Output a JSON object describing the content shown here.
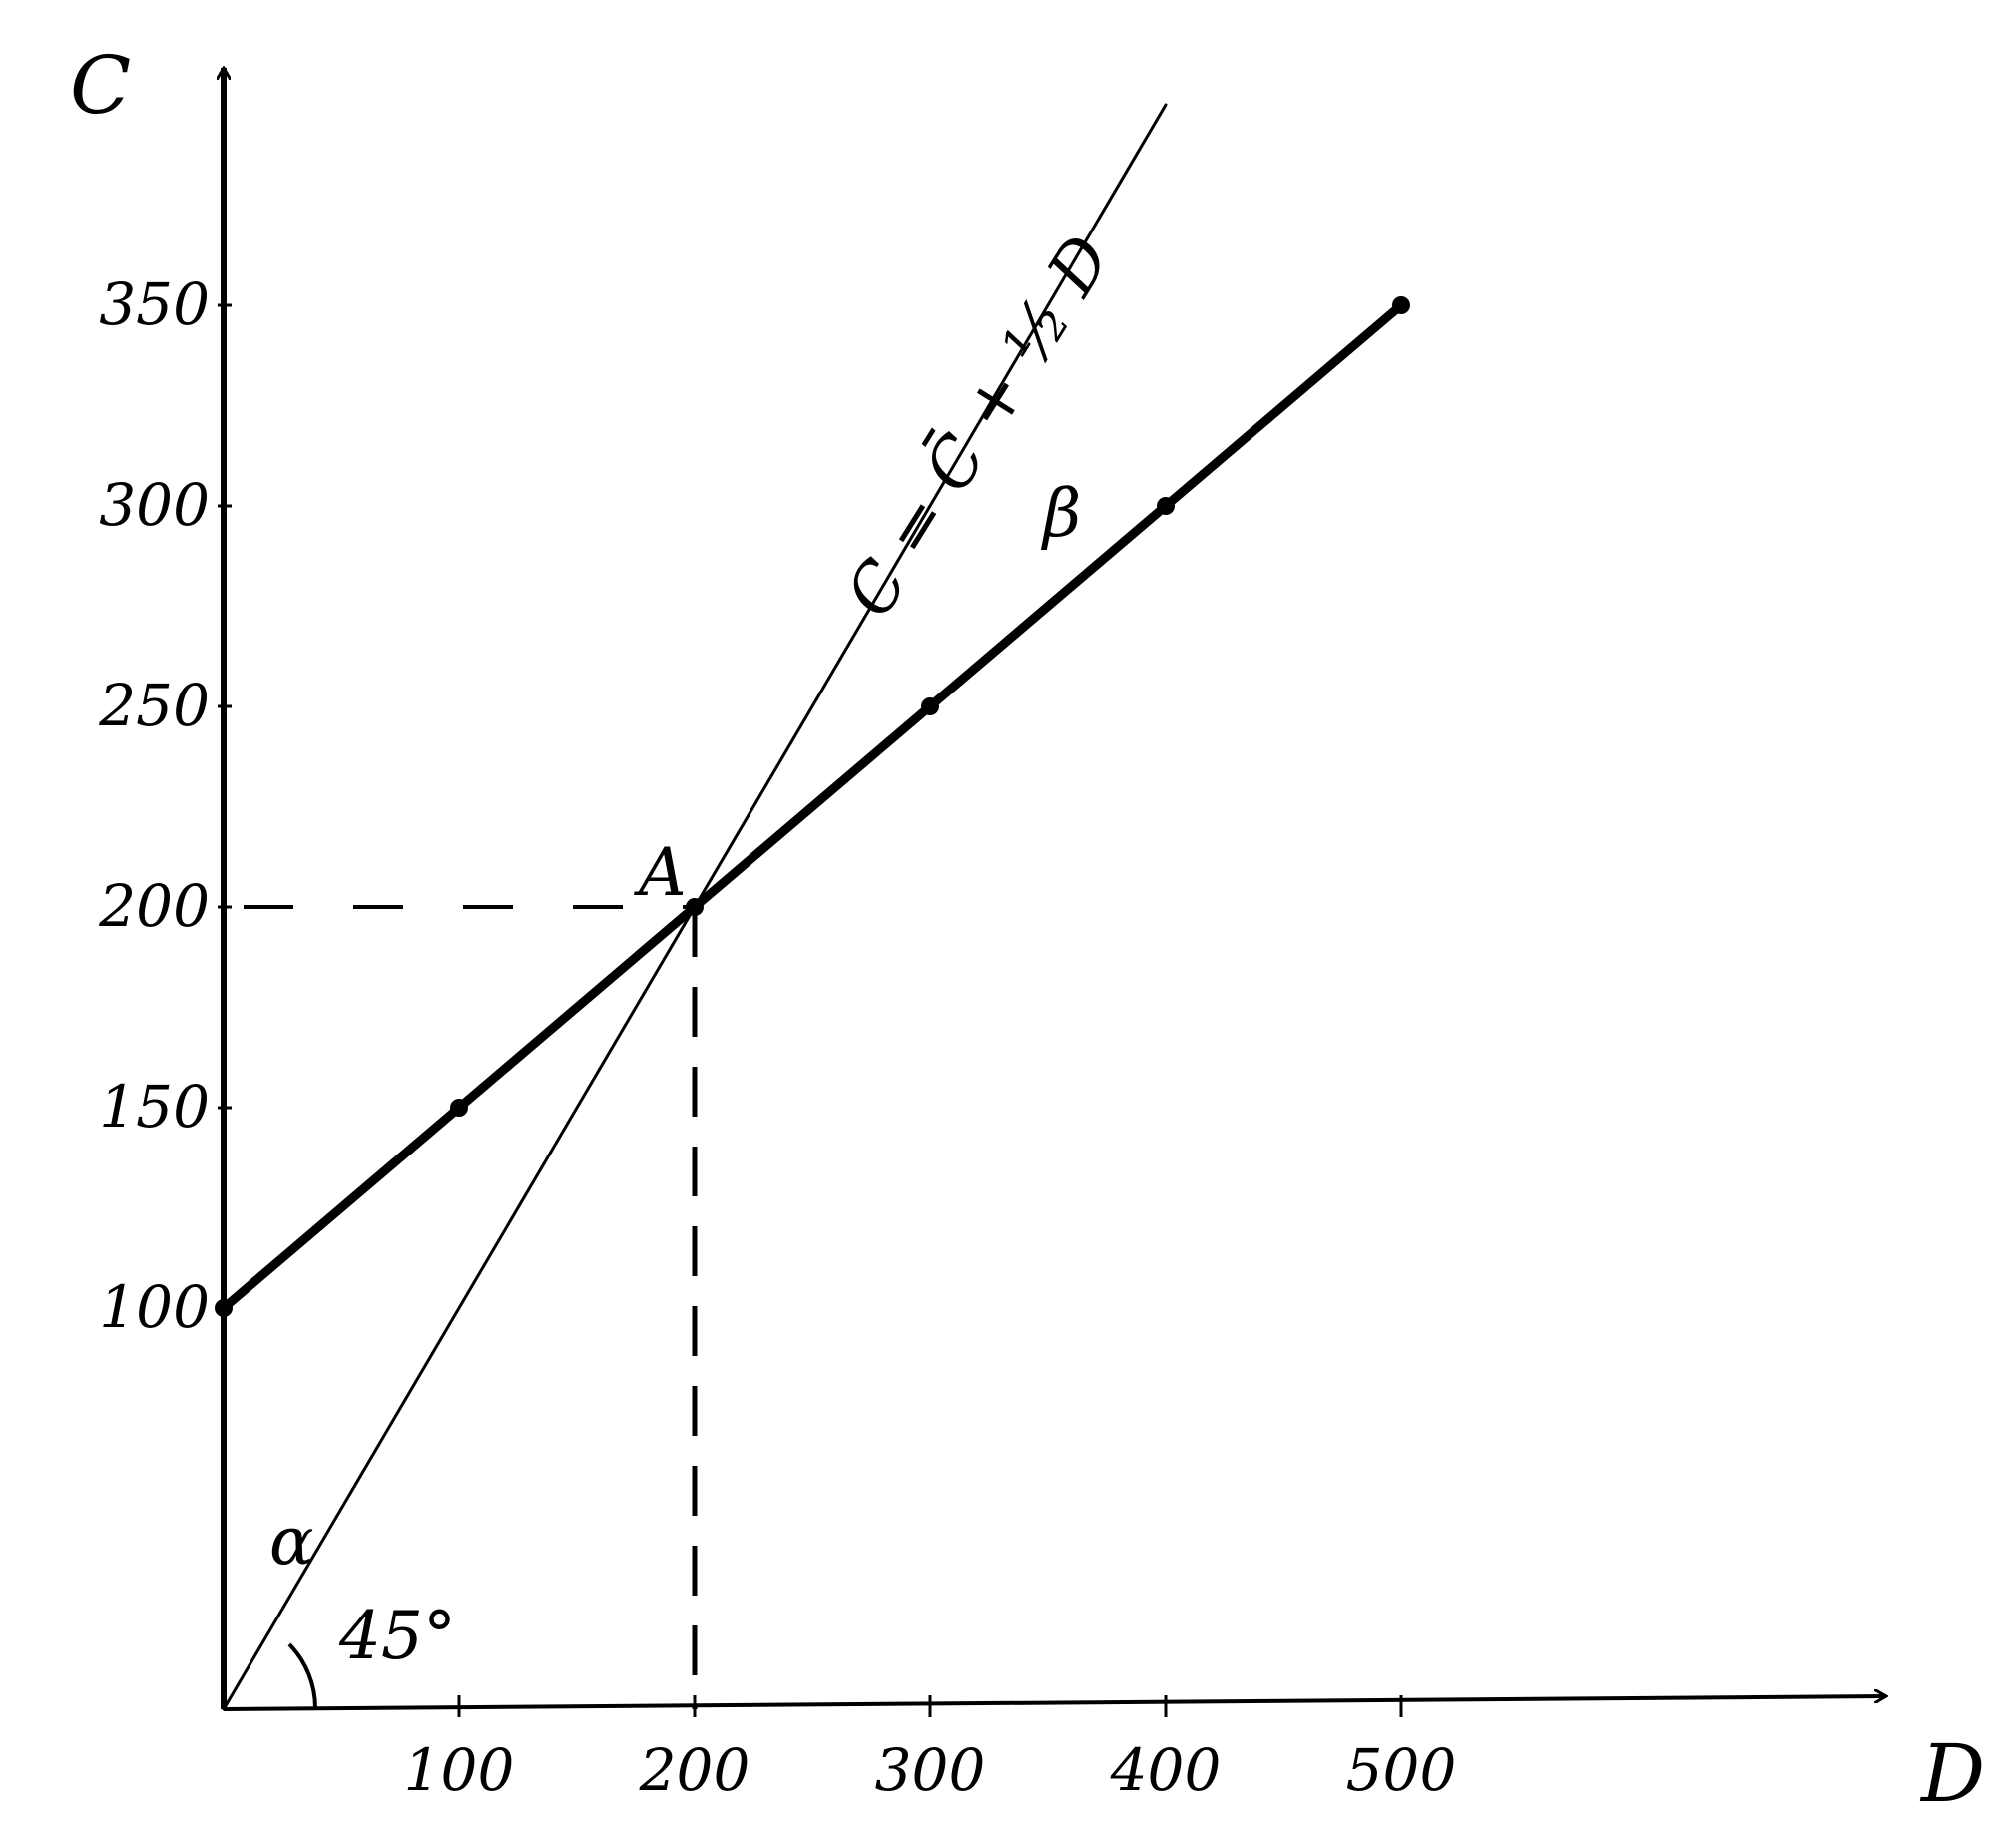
{
  "chart_data": {
    "type": "line",
    "x_label": "D",
    "y_label": "C",
    "xlim": [
      0,
      700
    ],
    "ylim": [
      0,
      400
    ],
    "xticks": [
      100,
      200,
      300,
      400,
      500
    ],
    "yticks": [
      100,
      150,
      200,
      250,
      300,
      350
    ],
    "grid": false,
    "series": [
      {
        "x": [
          0,
          100,
          200,
          300,
          400,
          500
        ],
        "values": [
          100,
          150,
          200,
          250,
          300,
          350
        ],
        "color": "#000000",
        "width": "thick",
        "markers": true
      },
      {
        "x": [
          0,
          400
        ],
        "values": [
          0,
          400
        ],
        "color": "#000000",
        "width": "thin",
        "markers": false
      }
    ],
    "guides": {
      "x": 200,
      "y": 200
    },
    "annotations": {
      "point": "A",
      "alpha": "α",
      "beta": "β",
      "angle": "45°",
      "equation": "C = C̄ + ½ D"
    }
  }
}
